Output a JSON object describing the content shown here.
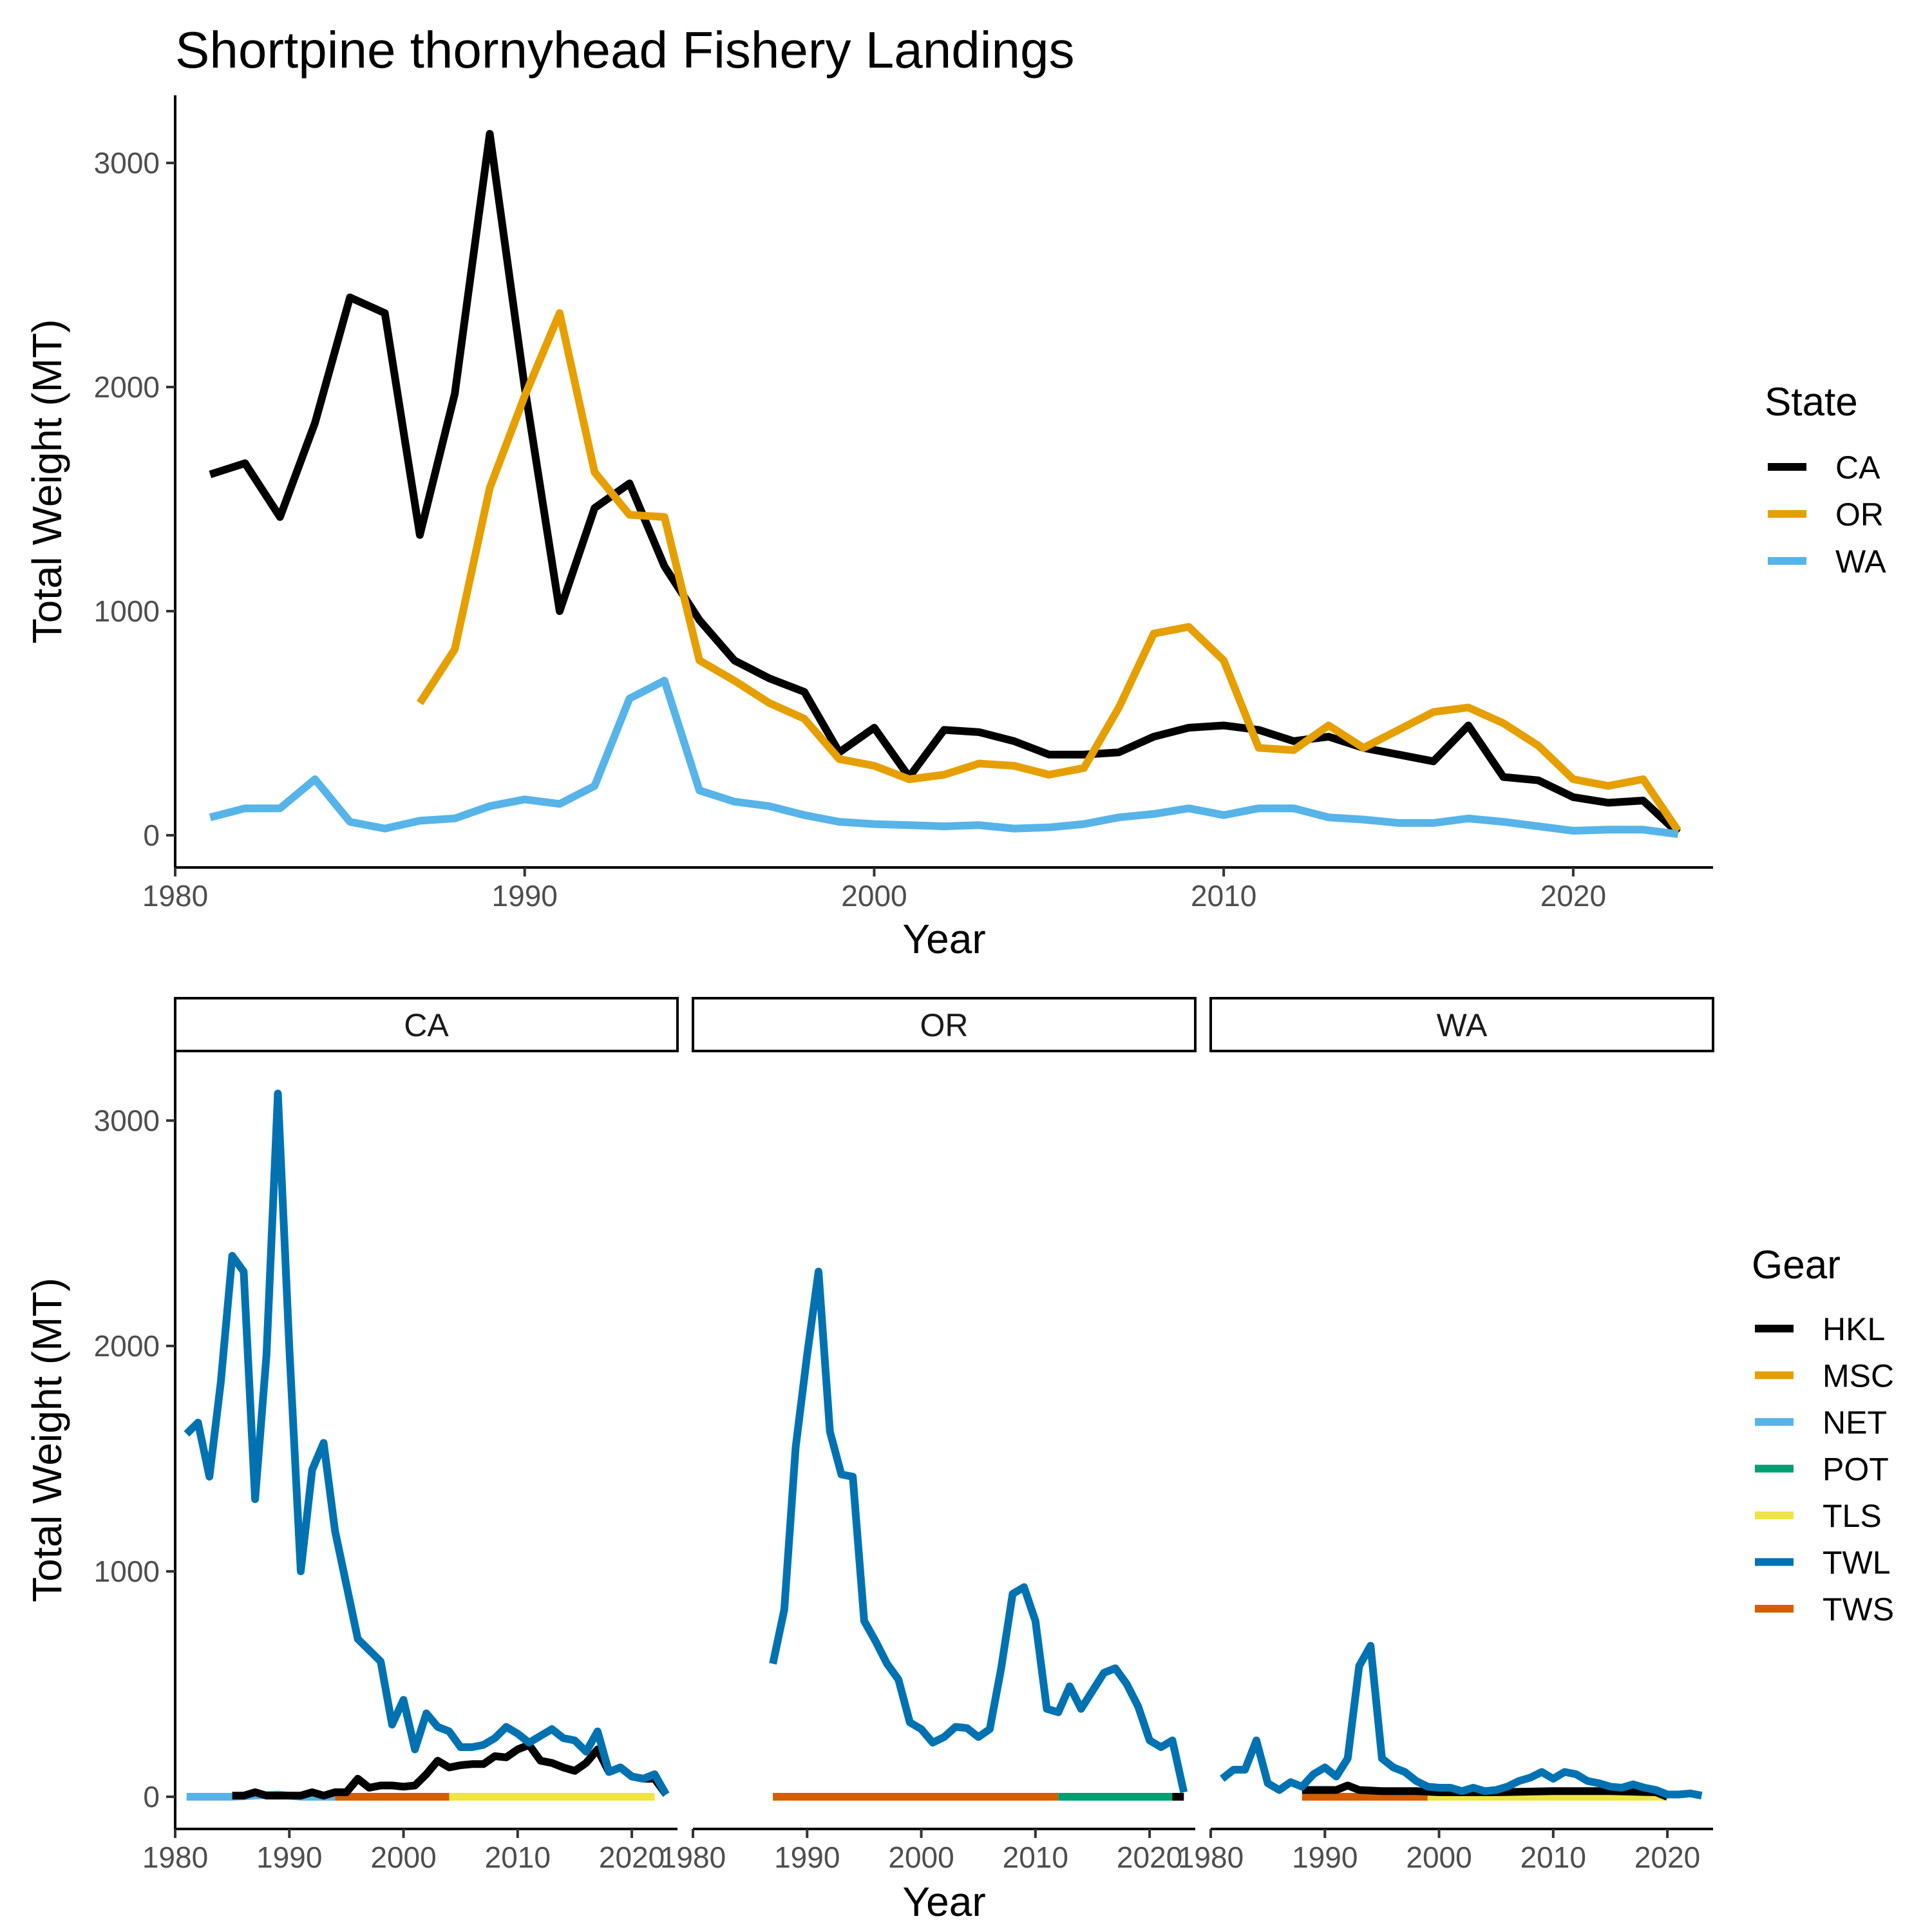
{
  "chart_data": [
    {
      "type": "line",
      "title": "Shortpine thornyhead Fishery Landings",
      "xlabel": "Year",
      "ylabel": "Total Weight (MT)",
      "xlim": [
        1980,
        2024
      ],
      "ylim": [
        0,
        3200
      ],
      "x_ticks": [
        1980,
        1990,
        2000,
        2010,
        2020
      ],
      "y_ticks": [
        0,
        1000,
        2000,
        3000
      ],
      "grid": false,
      "legend": {
        "title": "State",
        "placement": "right"
      },
      "series": [
        {
          "name": "CA",
          "color": "#000000",
          "x": [
            1981,
            1982,
            1983,
            1984,
            1985,
            1986,
            1987,
            1988,
            1989,
            1990,
            1991,
            1992,
            1993,
            1994,
            1995,
            1996,
            1997,
            1998,
            1999,
            2000,
            2001,
            2002,
            2003,
            2004,
            2005,
            2006,
            2007,
            2008,
            2009,
            2010,
            2011,
            2012,
            2013,
            2014,
            2015,
            2016,
            2017,
            2018,
            2019,
            2020,
            2021,
            2022,
            2023
          ],
          "y": [
            1610,
            1660,
            1420,
            1840,
            2400,
            2330,
            1340,
            1970,
            3130,
            2000,
            1000,
            1460,
            1570,
            1200,
            960,
            780,
            700,
            640,
            370,
            480,
            260,
            470,
            460,
            420,
            360,
            360,
            370,
            440,
            480,
            490,
            470,
            420,
            440,
            390,
            360,
            330,
            490,
            260,
            245,
            170,
            145,
            155,
            10
          ]
        },
        {
          "name": "OR",
          "color": "#E69F00",
          "x": [
            1987,
            1988,
            1989,
            1990,
            1991,
            1992,
            1993,
            1994,
            1995,
            1996,
            1997,
            1998,
            1999,
            2000,
            2001,
            2002,
            2003,
            2004,
            2005,
            2006,
            2007,
            2008,
            2009,
            2010,
            2011,
            2012,
            2013,
            2014,
            2015,
            2016,
            2017,
            2018,
            2019,
            2020,
            2021,
            2022,
            2023
          ],
          "y": [
            590,
            830,
            1550,
            1960,
            2330,
            1620,
            1430,
            1420,
            780,
            690,
            590,
            520,
            340,
            310,
            250,
            270,
            320,
            310,
            270,
            300,
            570,
            900,
            930,
            780,
            390,
            380,
            490,
            390,
            470,
            550,
            570,
            500,
            400,
            250,
            220,
            250,
            20
          ]
        },
        {
          "name": "WA",
          "color": "#56B4E9",
          "x": [
            1981,
            1982,
            1983,
            1984,
            1985,
            1986,
            1987,
            1988,
            1989,
            1990,
            1991,
            1992,
            1993,
            1994,
            1995,
            1996,
            1997,
            1998,
            1999,
            2000,
            2001,
            2002,
            2003,
            2004,
            2005,
            2006,
            2007,
            2008,
            2009,
            2010,
            2011,
            2012,
            2013,
            2014,
            2015,
            2016,
            2017,
            2018,
            2019,
            2020,
            2021,
            2022,
            2023
          ],
          "y": [
            80,
            120,
            120,
            250,
            60,
            30,
            65,
            75,
            130,
            160,
            140,
            220,
            610,
            690,
            200,
            150,
            130,
            90,
            60,
            50,
            45,
            40,
            45,
            30,
            35,
            50,
            80,
            95,
            120,
            90,
            120,
            120,
            80,
            70,
            55,
            55,
            75,
            60,
            40,
            20,
            25,
            25,
            5
          ]
        }
      ]
    },
    {
      "type": "line",
      "xlabel": "Year",
      "ylabel": "Total Weight (MT)",
      "xlim": [
        1980,
        2024
      ],
      "ylim": [
        0,
        3200
      ],
      "x_ticks": [
        1980,
        1990,
        2000,
        2010,
        2020
      ],
      "y_ticks": [
        0,
        1000,
        2000,
        3000
      ],
      "grid": false,
      "legend": {
        "title": "Gear",
        "placement": "right"
      },
      "legend_entries": [
        {
          "name": "HKL",
          "color": "#000000"
        },
        {
          "name": "MSC",
          "color": "#E69F00"
        },
        {
          "name": "NET",
          "color": "#56B4E9"
        },
        {
          "name": "POT",
          "color": "#009E73"
        },
        {
          "name": "TLS",
          "color": "#F0E442"
        },
        {
          "name": "TWL",
          "color": "#0072B2"
        },
        {
          "name": "TWS",
          "color": "#D55E00"
        }
      ],
      "panels": [
        {
          "name": "CA",
          "series": [
            {
              "gear": "TWS",
              "color": "#D55E00",
              "x": [
                1994,
                2004
              ],
              "y": [
                0,
                0
              ]
            },
            {
              "gear": "TLS",
              "color": "#F0E442",
              "x": [
                2004,
                2022
              ],
              "y": [
                0,
                0
              ]
            },
            {
              "gear": "NET",
              "color": "#56B4E9",
              "x": [
                1981,
                1985,
                1989,
                1990,
                1991,
                1994
              ],
              "y": [
                0,
                0,
                10,
                5,
                0,
                0
              ]
            },
            {
              "gear": "HKL",
              "color": "#000000",
              "x": [
                1985,
                1986,
                1987,
                1988,
                1989,
                1990,
                1991,
                1992,
                1993,
                1994,
                1995,
                1996,
                1997,
                1998,
                1999,
                2000,
                2001,
                2002,
                2003,
                2004,
                2005,
                2006,
                2007,
                2008,
                2009,
                2010,
                2011,
                2012,
                2013,
                2014,
                2015,
                2016,
                2017,
                2018,
                2019,
                2020,
                2021,
                2022,
                2023
              ],
              "y": [
                5,
                5,
                20,
                5,
                5,
                5,
                5,
                20,
                5,
                20,
                20,
                80,
                40,
                50,
                50,
                45,
                50,
                100,
                160,
                130,
                140,
                145,
                145,
                180,
                175,
                210,
                230,
                160,
                150,
                130,
                115,
                150,
                210,
                110,
                130,
                90,
                80,
                80,
                10
              ]
            },
            {
              "gear": "TWL",
              "color": "#0072B2",
              "x": [
                1981,
                1982,
                1983,
                1984,
                1985,
                1986,
                1987,
                1988,
                1989,
                1990,
                1991,
                1992,
                1993,
                1994,
                1995,
                1996,
                1997,
                1998,
                1999,
                2000,
                2001,
                2002,
                2003,
                2004,
                2005,
                2006,
                2007,
                2008,
                2009,
                2010,
                2011,
                2012,
                2013,
                2014,
                2015,
                2016,
                2017,
                2018,
                2019,
                2020,
                2021,
                2022,
                2023
              ],
              "y": [
                1610,
                1660,
                1420,
                1840,
                2400,
                2330,
                1320,
                1960,
                3120,
                1990,
                1000,
                1450,
                1570,
                1180,
                940,
                700,
                650,
                600,
                320,
                430,
                210,
                370,
                310,
                290,
                220,
                220,
                230,
                260,
                310,
                280,
                240,
                270,
                300,
                260,
                250,
                200,
                290,
                110,
                130,
                90,
                80,
                100,
                10
              ]
            }
          ]
        },
        {
          "name": "OR",
          "series": [
            {
              "gear": "TWS",
              "color": "#D55E00",
              "x": [
                1987,
                2012
              ],
              "y": [
                0,
                0
              ]
            },
            {
              "gear": "POT",
              "color": "#009E73",
              "x": [
                2012,
                2022
              ],
              "y": [
                0,
                0
              ]
            },
            {
              "gear": "HKL",
              "color": "#000000",
              "x": [
                2022,
                2023
              ],
              "y": [
                0,
                0
              ]
            },
            {
              "gear": "TWL",
              "color": "#0072B2",
              "x": [
                1987,
                1988,
                1989,
                1990,
                1991,
                1992,
                1993,
                1994,
                1995,
                1996,
                1997,
                1998,
                1999,
                2000,
                2001,
                2002,
                2003,
                2004,
                2005,
                2006,
                2007,
                2008,
                2009,
                2010,
                2011,
                2012,
                2013,
                2014,
                2015,
                2016,
                2017,
                2018,
                2019,
                2020,
                2021,
                2022,
                2023
              ],
              "y": [
                590,
                830,
                1550,
                1960,
                2330,
                1620,
                1430,
                1420,
                780,
                690,
                590,
                520,
                330,
                300,
                240,
                265,
                310,
                305,
                265,
                300,
                570,
                900,
                930,
                780,
                390,
                375,
                490,
                390,
                470,
                550,
                570,
                500,
                400,
                250,
                220,
                250,
                20
              ]
            }
          ]
        },
        {
          "name": "WA",
          "series": [
            {
              "gear": "TWS",
              "color": "#D55E00",
              "x": [
                1988,
                1999
              ],
              "y": [
                0,
                0
              ]
            },
            {
              "gear": "TLS",
              "color": "#F0E442",
              "x": [
                1999,
                2020
              ],
              "y": [
                0,
                0
              ]
            },
            {
              "gear": "HKL",
              "color": "#000000",
              "x": [
                1988,
                1991,
                1992,
                1993,
                1995,
                1998,
                2000,
                2005,
                2010,
                2015,
                2019,
                2020
              ],
              "y": [
                30,
                30,
                50,
                30,
                25,
                25,
                20,
                20,
                25,
                25,
                20,
                0
              ]
            },
            {
              "gear": "TWL",
              "color": "#0072B2",
              "x": [
                1981,
                1982,
                1983,
                1984,
                1985,
                1986,
                1987,
                1988,
                1989,
                1990,
                1991,
                1992,
                1993,
                1994,
                1995,
                1996,
                1997,
                1998,
                1999,
                2000,
                2001,
                2002,
                2003,
                2004,
                2005,
                2006,
                2007,
                2008,
                2009,
                2010,
                2011,
                2012,
                2013,
                2014,
                2015,
                2016,
                2017,
                2018,
                2019,
                2020,
                2021,
                2022,
                2023
              ],
              "y": [
                80,
                120,
                120,
                250,
                60,
                30,
                65,
                45,
                100,
                130,
                90,
                170,
                580,
                670,
                170,
                130,
                110,
                70,
                45,
                40,
                40,
                25,
                40,
                25,
                30,
                45,
                70,
                85,
                110,
                80,
                110,
                100,
                70,
                60,
                45,
                40,
                55,
                40,
                30,
                10,
                10,
                15,
                5
              ]
            }
          ]
        }
      ]
    }
  ]
}
